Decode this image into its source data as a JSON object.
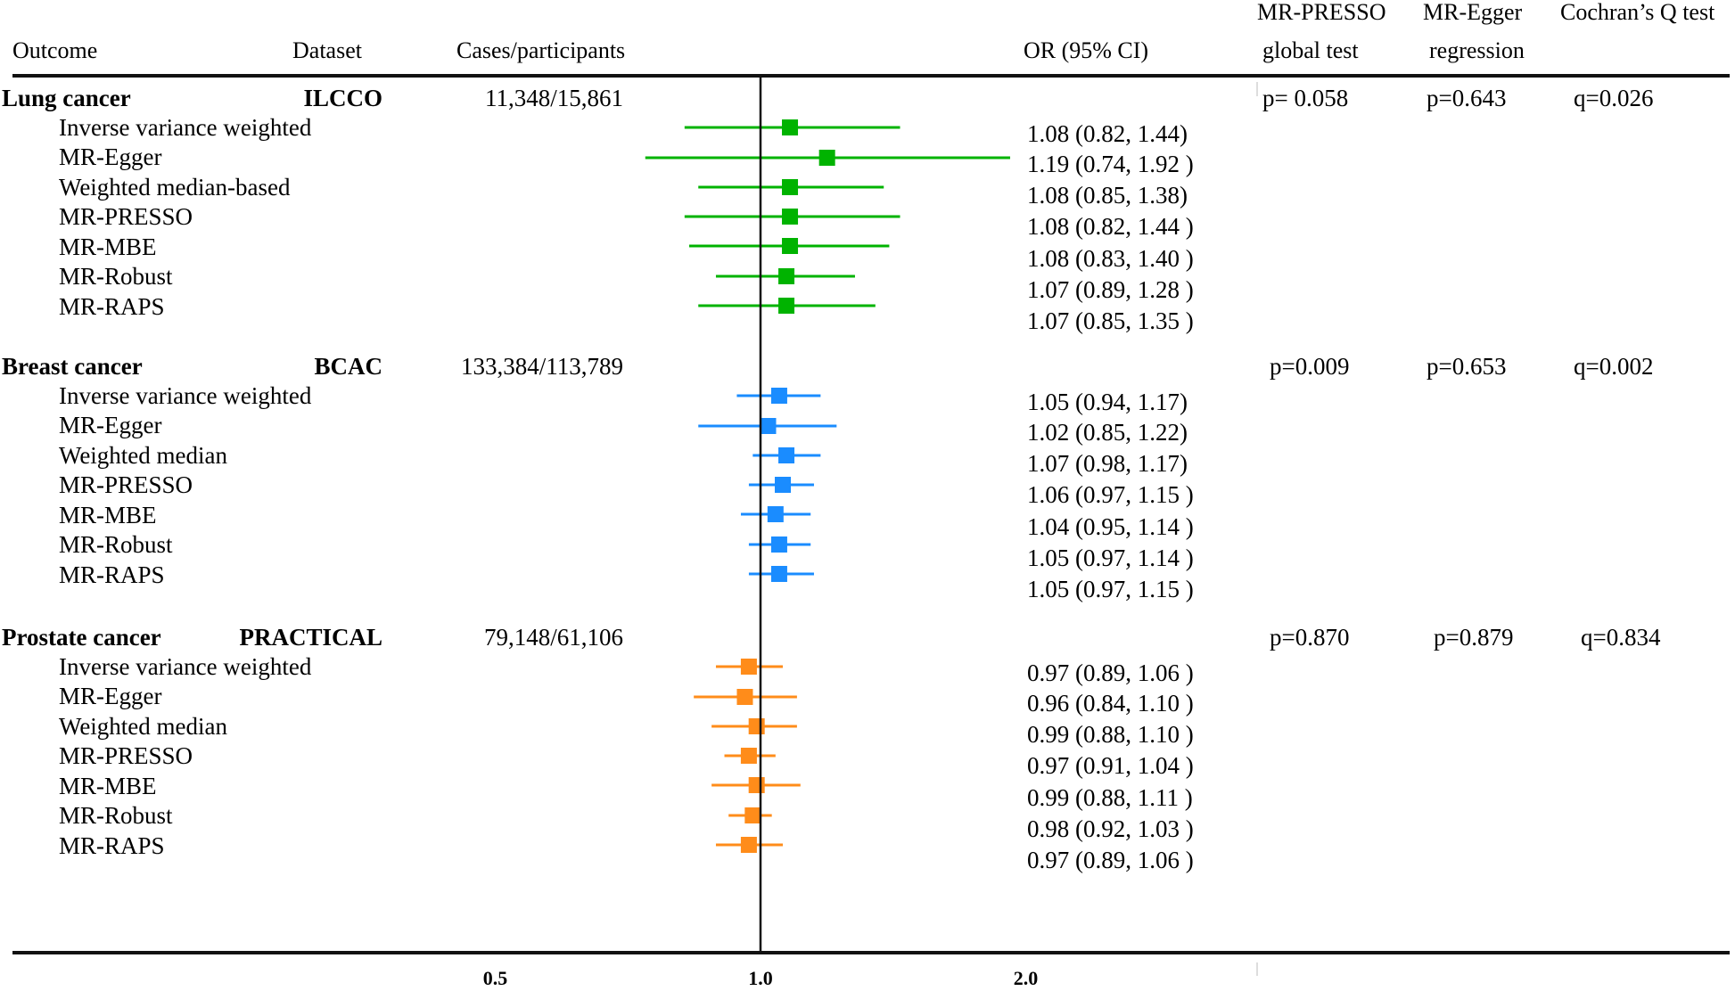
{
  "headers": {
    "outcome": "Outcome",
    "dataset": "Dataset",
    "cases": "Cases/participants",
    "or": "OR (95% CI)",
    "presso_line1": "MR-PRESSO",
    "presso_line2": "global test",
    "egger_line1": "MR-Egger",
    "egger_line2": "regression",
    "cochran": "Cochran’s Q test"
  },
  "chart_data": {
    "type": "forest",
    "xscale": "log2",
    "xlim": [
      0.5,
      2.0
    ],
    "reference_line": 1.0,
    "xticks": [
      0.5,
      1.0,
      2.0
    ],
    "xtick_labels": [
      "0.5",
      "1.0",
      "2.0"
    ],
    "groups": [
      {
        "outcome": "Lung cancer",
        "dataset": "ILCCO",
        "cases": "11,348/15,861",
        "presso_p": "p= 0.058",
        "egger_p": "p=0.643",
        "cochran_q": "q=0.026",
        "color": "#00b300",
        "methods": [
          {
            "name": "Inverse variance weighted",
            "or": 1.08,
            "lo": 0.82,
            "hi": 1.44,
            "label": "1.08 (0.82, 1.44)"
          },
          {
            "name": "MR-Egger",
            "or": 1.19,
            "lo": 0.74,
            "hi": 1.92,
            "label": "1.19 (0.74, 1.92 )"
          },
          {
            "name": "Weighted median-based",
            "or": 1.08,
            "lo": 0.85,
            "hi": 1.38,
            "label": "1.08 (0.85, 1.38)"
          },
          {
            "name": "MR-PRESSO",
            "or": 1.08,
            "lo": 0.82,
            "hi": 1.44,
            "label": "1.08 (0.82, 1.44 )"
          },
          {
            "name": "MR-MBE",
            "or": 1.08,
            "lo": 0.83,
            "hi": 1.4,
            "label": "1.08 (0.83, 1.40 )"
          },
          {
            "name": "MR-Robust",
            "or": 1.07,
            "lo": 0.89,
            "hi": 1.28,
            "label": "1.07 (0.89, 1.28 )"
          },
          {
            "name": "MR-RAPS",
            "or": 1.07,
            "lo": 0.85,
            "hi": 1.35,
            "label": "1.07 (0.85, 1.35 )"
          }
        ]
      },
      {
        "outcome": "Breast cancer",
        "dataset": "BCAC",
        "cases": "133,384/113,789",
        "presso_p": "p=0.009",
        "egger_p": "p=0.653",
        "cochran_q": "q=0.002",
        "color": "#1a8cff",
        "methods": [
          {
            "name": "Inverse variance weighted",
            "or": 1.05,
            "lo": 0.94,
            "hi": 1.17,
            "label": "1.05 (0.94, 1.17)"
          },
          {
            "name": "MR-Egger",
            "or": 1.02,
            "lo": 0.85,
            "hi": 1.22,
            "label": "1.02 (0.85, 1.22)"
          },
          {
            "name": "Weighted median",
            "or": 1.07,
            "lo": 0.98,
            "hi": 1.17,
            "label": "1.07 (0.98, 1.17)"
          },
          {
            "name": "MR-PRESSO",
            "or": 1.06,
            "lo": 0.97,
            "hi": 1.15,
            "label": "1.06 (0.97, 1.15 )"
          },
          {
            "name": "MR-MBE",
            "or": 1.04,
            "lo": 0.95,
            "hi": 1.14,
            "label": "1.04 (0.95, 1.14 )"
          },
          {
            "name": "MR-Robust",
            "or": 1.05,
            "lo": 0.97,
            "hi": 1.14,
            "label": "1.05 (0.97, 1.14 )"
          },
          {
            "name": "MR-RAPS",
            "or": 1.05,
            "lo": 0.97,
            "hi": 1.15,
            "label": "1.05 (0.97, 1.15 )"
          }
        ]
      },
      {
        "outcome": "Prostate cancer",
        "dataset": "PRACTICAL",
        "cases": "79,148/61,106",
        "presso_p": "p=0.870",
        "egger_p": "p=0.879",
        "cochran_q": "q=0.834",
        "color": "#ff8c1a",
        "methods": [
          {
            "name": "Inverse variance weighted",
            "or": 0.97,
            "lo": 0.89,
            "hi": 1.06,
            "label": "0.97 (0.89, 1.06 )"
          },
          {
            "name": "MR-Egger",
            "or": 0.96,
            "lo": 0.84,
            "hi": 1.1,
            "label": "0.96 (0.84, 1.10 )"
          },
          {
            "name": "Weighted median",
            "or": 0.99,
            "lo": 0.88,
            "hi": 1.1,
            "label": "0.99 (0.88, 1.10 )"
          },
          {
            "name": "MR-PRESSO",
            "or": 0.97,
            "lo": 0.91,
            "hi": 1.04,
            "label": "0.97 (0.91, 1.04 )"
          },
          {
            "name": "MR-MBE",
            "or": 0.99,
            "lo": 0.88,
            "hi": 1.11,
            "label": "0.99 (0.88, 1.11 )"
          },
          {
            "name": "MR-Robust",
            "or": 0.98,
            "lo": 0.92,
            "hi": 1.03,
            "label": "0.98 (0.92, 1.03 )"
          },
          {
            "name": "MR-RAPS",
            "or": 0.97,
            "lo": 0.89,
            "hi": 1.06,
            "label": "0.97 (0.89, 1.06 )"
          }
        ]
      }
    ]
  }
}
